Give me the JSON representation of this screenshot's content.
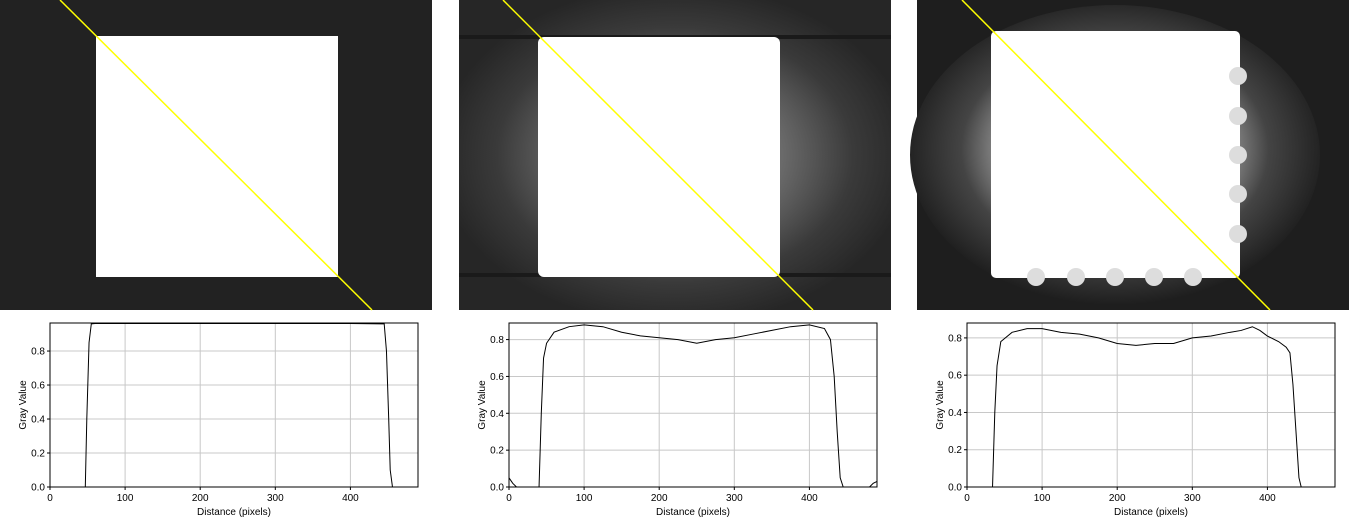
{
  "chart_data": [
    {
      "type": "line",
      "x_label": "Distance (pixels)",
      "y_label": "Gray Value",
      "x": [
        0,
        47,
        49,
        52,
        55,
        60,
        100,
        200,
        300,
        400,
        445,
        448,
        451,
        453,
        456,
        490
      ],
      "series": [
        {
          "color": "#000000",
          "values": [
            0,
            0,
            0.4,
            0.85,
            0.96,
            0.962,
            0.962,
            0.962,
            0.962,
            0.962,
            0.96,
            0.8,
            0.4,
            0.1,
            0,
            0
          ]
        }
      ],
      "xlim": [
        0,
        490
      ],
      "ylim": [
        0,
        0.965
      ],
      "xticks": [
        0,
        100,
        200,
        300,
        400
      ],
      "yticks": [
        {
          "value": 0,
          "label": "0.0"
        },
        0.2,
        0.4,
        0.6,
        0.8
      ],
      "grid": true
    },
    {
      "type": "line",
      "x_label": "Distance (pixels)",
      "y_label": "Gray Value",
      "x": [
        0,
        5,
        10,
        40,
        43,
        46,
        50,
        60,
        80,
        100,
        125,
        150,
        175,
        200,
        225,
        250,
        275,
        300,
        325,
        350,
        375,
        400,
        420,
        428,
        433,
        437,
        441,
        445,
        480,
        485,
        490
      ],
      "series": [
        {
          "color": "#000000",
          "values": [
            0.05,
            0.02,
            0,
            0,
            0.4,
            0.7,
            0.78,
            0.84,
            0.87,
            0.88,
            0.87,
            0.84,
            0.82,
            0.81,
            0.8,
            0.78,
            0.8,
            0.81,
            0.83,
            0.85,
            0.87,
            0.88,
            0.86,
            0.8,
            0.6,
            0.3,
            0.05,
            0,
            0,
            0.02,
            0.03
          ]
        }
      ],
      "xlim": [
        0,
        490
      ],
      "ylim": [
        0,
        0.89
      ],
      "xticks": [
        0,
        100,
        200,
        300,
        400
      ],
      "yticks": [
        {
          "value": 0,
          "label": "0.0"
        },
        0.2,
        0.4,
        0.6,
        0.8
      ],
      "grid": true
    },
    {
      "type": "line",
      "x_label": "Distance (pixels)",
      "y_label": "Gray Value",
      "x": [
        0,
        34,
        37,
        40,
        45,
        60,
        80,
        100,
        125,
        150,
        175,
        200,
        225,
        250,
        275,
        300,
        325,
        350,
        365,
        380,
        390,
        400,
        415,
        425,
        430,
        434,
        438,
        442,
        445,
        490
      ],
      "series": [
        {
          "color": "#000000",
          "values": [
            0,
            0,
            0.4,
            0.65,
            0.78,
            0.83,
            0.85,
            0.85,
            0.83,
            0.82,
            0.8,
            0.77,
            0.76,
            0.77,
            0.77,
            0.8,
            0.81,
            0.83,
            0.84,
            0.86,
            0.84,
            0.81,
            0.78,
            0.75,
            0.72,
            0.55,
            0.3,
            0.05,
            0,
            0
          ]
        }
      ],
      "xlim": [
        0,
        490
      ],
      "ylim": [
        0,
        0.88
      ],
      "xticks": [
        0,
        100,
        200,
        300,
        400
      ],
      "yticks": [
        {
          "value": 0,
          "label": "0.0"
        },
        0.2,
        0.4,
        0.6,
        0.8
      ],
      "grid": true
    }
  ]
}
